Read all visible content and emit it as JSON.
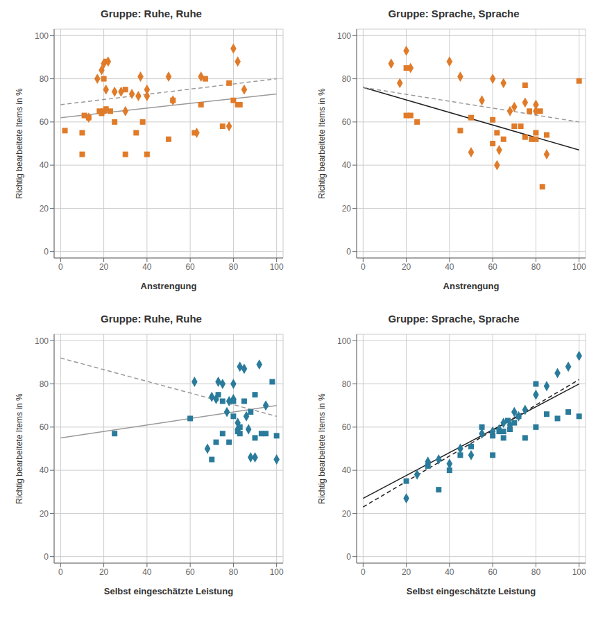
{
  "chart_data": [
    {
      "type": "scatter",
      "title": "Gruppe: Ruhe, Ruhe",
      "x_label": "Anstrengung",
      "y_label": "Richtig bearbeitete Items in %",
      "xlim": [
        -3,
        103
      ],
      "ylim": [
        -3,
        103
      ],
      "xticks": [
        0,
        20,
        40,
        60,
        80,
        100
      ],
      "yticks": [
        0,
        20,
        40,
        60,
        80,
        100
      ],
      "grid": true,
      "series": [
        {
          "type": "scatter",
          "marker": "square",
          "color": "#E07B2A",
          "x": [
            2,
            10,
            10,
            11,
            13,
            18,
            19,
            20,
            20,
            21,
            21,
            23,
            25,
            30,
            30,
            35,
            38,
            40,
            50,
            52,
            62,
            65,
            67,
            75,
            78,
            80,
            82,
            83
          ],
          "y": [
            56,
            45,
            55,
            63,
            62,
            65,
            64,
            65,
            80,
            66,
            88,
            65,
            60,
            45,
            75,
            55,
            60,
            45,
            52,
            70,
            55,
            68,
            80,
            58,
            78,
            70,
            68,
            68
          ]
        },
        {
          "type": "scatter",
          "marker": "diamond",
          "color": "#E07B2A",
          "x": [
            13,
            17,
            19,
            20,
            21,
            22,
            25,
            28,
            30,
            33,
            36,
            37,
            40,
            40,
            50,
            52,
            63,
            65,
            78,
            80,
            82,
            85
          ],
          "y": [
            62,
            80,
            84,
            87,
            75,
            88,
            74,
            74,
            65,
            73,
            72,
            81,
            75,
            72,
            81,
            70,
            55,
            81,
            58,
            94,
            88,
            75
          ]
        },
        {
          "type": "line",
          "line_style": "solid",
          "color": "#999999",
          "x": [
            0,
            100
          ],
          "y": [
            62,
            73
          ]
        },
        {
          "type": "line",
          "line_style": "dashed",
          "color": "#999999",
          "x": [
            0,
            100
          ],
          "y": [
            68,
            80
          ]
        }
      ]
    },
    {
      "type": "scatter",
      "title": "Gruppe: Sprache, Sprache",
      "x_label": "Anstrengung",
      "y_label": "Richtig bearbeitete Items in %",
      "xlim": [
        -3,
        103
      ],
      "ylim": [
        -3,
        103
      ],
      "xticks": [
        0,
        20,
        40,
        60,
        80,
        100
      ],
      "yticks": [
        0,
        20,
        40,
        60,
        80,
        100
      ],
      "grid": true,
      "series": [
        {
          "type": "scatter",
          "marker": "square",
          "color": "#E07B2A",
          "x": [
            20,
            20,
            22,
            25,
            45,
            50,
            60,
            60,
            62,
            65,
            70,
            73,
            75,
            75,
            77,
            78,
            80,
            80,
            82,
            83,
            85,
            100
          ],
          "y": [
            85,
            63,
            63,
            60,
            56,
            62,
            61,
            50,
            55,
            52,
            58,
            58,
            77,
            53,
            65,
            52,
            52,
            55,
            65,
            30,
            54,
            79
          ]
        },
        {
          "type": "scatter",
          "marker": "diamond",
          "color": "#E07B2A",
          "x": [
            13,
            17,
            20,
            22,
            40,
            45,
            50,
            55,
            60,
            62,
            63,
            65,
            68,
            70,
            75,
            80,
            80,
            85
          ],
          "y": [
            87,
            78,
            93,
            85,
            88,
            81,
            46,
            70,
            80,
            40,
            47,
            78,
            65,
            67,
            69,
            68,
            65,
            45
          ]
        },
        {
          "type": "line",
          "line_style": "solid",
          "color": "#222222",
          "x": [
            0,
            100
          ],
          "y": [
            76,
            47
          ]
        },
        {
          "type": "line",
          "line_style": "dashed",
          "color": "#999999",
          "x": [
            0,
            100
          ],
          "y": [
            76,
            60
          ]
        }
      ]
    },
    {
      "type": "scatter",
      "title": "Gruppe: Ruhe, Ruhe",
      "x_label": "Selbst eingeschätzte Leistung",
      "y_label": "Richtig bearbeitete Items in %",
      "xlim": [
        -3,
        103
      ],
      "ylim": [
        -3,
        103
      ],
      "xticks": [
        0,
        20,
        40,
        60,
        80,
        100
      ],
      "yticks": [
        0,
        20,
        40,
        60,
        80,
        100
      ],
      "grid": true,
      "series": [
        {
          "type": "scatter",
          "marker": "square",
          "color": "#2A7B9B",
          "x": [
            25,
            60,
            70,
            72,
            73,
            75,
            75,
            78,
            80,
            80,
            82,
            83,
            83,
            85,
            88,
            90,
            90,
            93,
            95,
            98,
            100
          ],
          "y": [
            57,
            64,
            45,
            53,
            75,
            72,
            57,
            53,
            72,
            65,
            58,
            57,
            60,
            72,
            67,
            55,
            75,
            57,
            57,
            81,
            56
          ]
        },
        {
          "type": "scatter",
          "marker": "diamond",
          "color": "#2A7B9B",
          "x": [
            62,
            68,
            70,
            72,
            73,
            75,
            77,
            78,
            80,
            80,
            82,
            82,
            83,
            85,
            86,
            87,
            88,
            90,
            92,
            95,
            100
          ],
          "y": [
            81,
            50,
            74,
            73,
            81,
            80,
            67,
            72,
            73,
            80,
            59,
            62,
            88,
            87,
            65,
            59,
            46,
            46,
            89,
            70,
            45
          ]
        },
        {
          "type": "line",
          "line_style": "solid",
          "color": "#999999",
          "x": [
            0,
            100
          ],
          "y": [
            55,
            70
          ]
        },
        {
          "type": "line",
          "line_style": "dashed",
          "color": "#999999",
          "x": [
            0,
            100
          ],
          "y": [
            92,
            65
          ]
        }
      ]
    },
    {
      "type": "scatter",
      "title": "Gruppe: Sprache, Sprache",
      "x_label": "Selbst eingeschätzte Leistung",
      "y_label": "Richtig bearbeitete Items in %",
      "xlim": [
        -3,
        103
      ],
      "ylim": [
        -3,
        103
      ],
      "xticks": [
        0,
        20,
        40,
        60,
        80,
        100
      ],
      "yticks": [
        0,
        20,
        40,
        60,
        80,
        100
      ],
      "grid": true,
      "series": [
        {
          "type": "scatter",
          "marker": "square",
          "color": "#2A7B9B",
          "x": [
            20,
            30,
            35,
            40,
            45,
            50,
            55,
            60,
            60,
            63,
            65,
            65,
            67,
            68,
            70,
            72,
            75,
            80,
            80,
            85,
            90,
            95,
            100
          ],
          "y": [
            35,
            42,
            31,
            40,
            47,
            51,
            60,
            56,
            47,
            58,
            58,
            55,
            63,
            59,
            62,
            65,
            55,
            60,
            80,
            66,
            64,
            67,
            65
          ]
        },
        {
          "type": "scatter",
          "marker": "diamond",
          "color": "#2A7B9B",
          "x": [
            20,
            25,
            30,
            35,
            40,
            45,
            50,
            55,
            60,
            63,
            65,
            68,
            70,
            72,
            75,
            80,
            85,
            90,
            95,
            100
          ],
          "y": [
            27,
            38,
            44,
            45,
            43,
            50,
            47,
            57,
            58,
            59,
            62,
            61,
            67,
            65,
            68,
            75,
            79,
            85,
            88,
            93
          ]
        },
        {
          "type": "line",
          "line_style": "solid",
          "color": "#222222",
          "x": [
            0,
            100
          ],
          "y": [
            27,
            80
          ]
        },
        {
          "type": "line",
          "line_style": "dashed",
          "color": "#222222",
          "x": [
            0,
            100
          ],
          "y": [
            23,
            82
          ]
        }
      ]
    }
  ]
}
